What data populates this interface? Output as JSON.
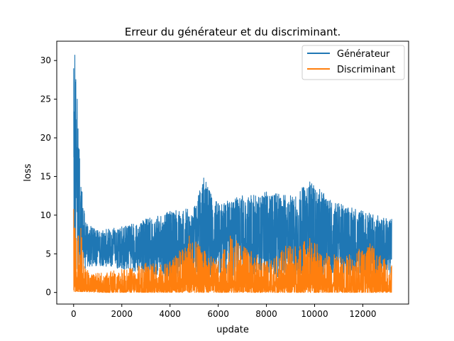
{
  "chart_data": {
    "type": "line",
    "title": "Erreur du générateur et du discriminant.",
    "xlabel": "update",
    "ylabel": "loss",
    "xlim": [
      -700,
      13900
    ],
    "ylim": [
      -1.5,
      32.5
    ],
    "xticks": [
      0,
      2000,
      4000,
      6000,
      8000,
      10000,
      12000
    ],
    "yticks": [
      0,
      5,
      10,
      15,
      20,
      25,
      30
    ],
    "x_range": [
      0,
      13200
    ],
    "grid": false,
    "legend_position": "top-right",
    "series": [
      {
        "name": "Générateur",
        "color": "#1f77b4",
        "envelope": [
          {
            "x": 0,
            "low": 0.5,
            "high": 29.0
          },
          {
            "x": 50,
            "low": 2.0,
            "high": 30.7
          },
          {
            "x": 150,
            "low": 3.0,
            "high": 25.0
          },
          {
            "x": 250,
            "low": 3.0,
            "high": 17.3
          },
          {
            "x": 350,
            "low": 3.0,
            "high": 13.0
          },
          {
            "x": 500,
            "low": 3.0,
            "high": 9.0
          },
          {
            "x": 1000,
            "low": 3.5,
            "high": 8.0
          },
          {
            "x": 2000,
            "low": 3.0,
            "high": 8.5
          },
          {
            "x": 3000,
            "low": 2.5,
            "high": 9.5
          },
          {
            "x": 4000,
            "low": 2.0,
            "high": 10.5
          },
          {
            "x": 5000,
            "low": 2.0,
            "high": 11.0
          },
          {
            "x": 5400,
            "low": 2.0,
            "high": 14.8
          },
          {
            "x": 6000,
            "low": 2.0,
            "high": 11.5
          },
          {
            "x": 7000,
            "low": 2.0,
            "high": 12.5
          },
          {
            "x": 8000,
            "low": 2.0,
            "high": 13.0
          },
          {
            "x": 9000,
            "low": 2.0,
            "high": 12.5
          },
          {
            "x": 9800,
            "low": 2.0,
            "high": 14.3
          },
          {
            "x": 11000,
            "low": 2.0,
            "high": 11.5
          },
          {
            "x": 12000,
            "low": 2.0,
            "high": 10.5
          },
          {
            "x": 13200,
            "low": 2.0,
            "high": 9.5
          }
        ]
      },
      {
        "name": "Discriminant",
        "color": "#ff7f0e",
        "envelope": [
          {
            "x": 0,
            "low": 0.1,
            "high": 10.8
          },
          {
            "x": 100,
            "low": 0.1,
            "high": 7.0
          },
          {
            "x": 300,
            "low": 0.1,
            "high": 8.3
          },
          {
            "x": 500,
            "low": 0.1,
            "high": 3.0
          },
          {
            "x": 1000,
            "low": 0.0,
            "high": 2.5
          },
          {
            "x": 2000,
            "low": 0.0,
            "high": 3.0
          },
          {
            "x": 3000,
            "low": 0.0,
            "high": 3.8
          },
          {
            "x": 4000,
            "low": 0.0,
            "high": 4.0
          },
          {
            "x": 4800,
            "low": 0.0,
            "high": 7.3
          },
          {
            "x": 6000,
            "low": 0.0,
            "high": 4.0
          },
          {
            "x": 6500,
            "low": 0.0,
            "high": 7.3
          },
          {
            "x": 8000,
            "low": 0.0,
            "high": 4.0
          },
          {
            "x": 8800,
            "low": 0.0,
            "high": 6.0
          },
          {
            "x": 9800,
            "low": 0.0,
            "high": 7.0
          },
          {
            "x": 11000,
            "low": 0.0,
            "high": 4.5
          },
          {
            "x": 12300,
            "low": 0.0,
            "high": 6.3
          },
          {
            "x": 13200,
            "low": 0.0,
            "high": 3.5
          }
        ]
      }
    ]
  }
}
